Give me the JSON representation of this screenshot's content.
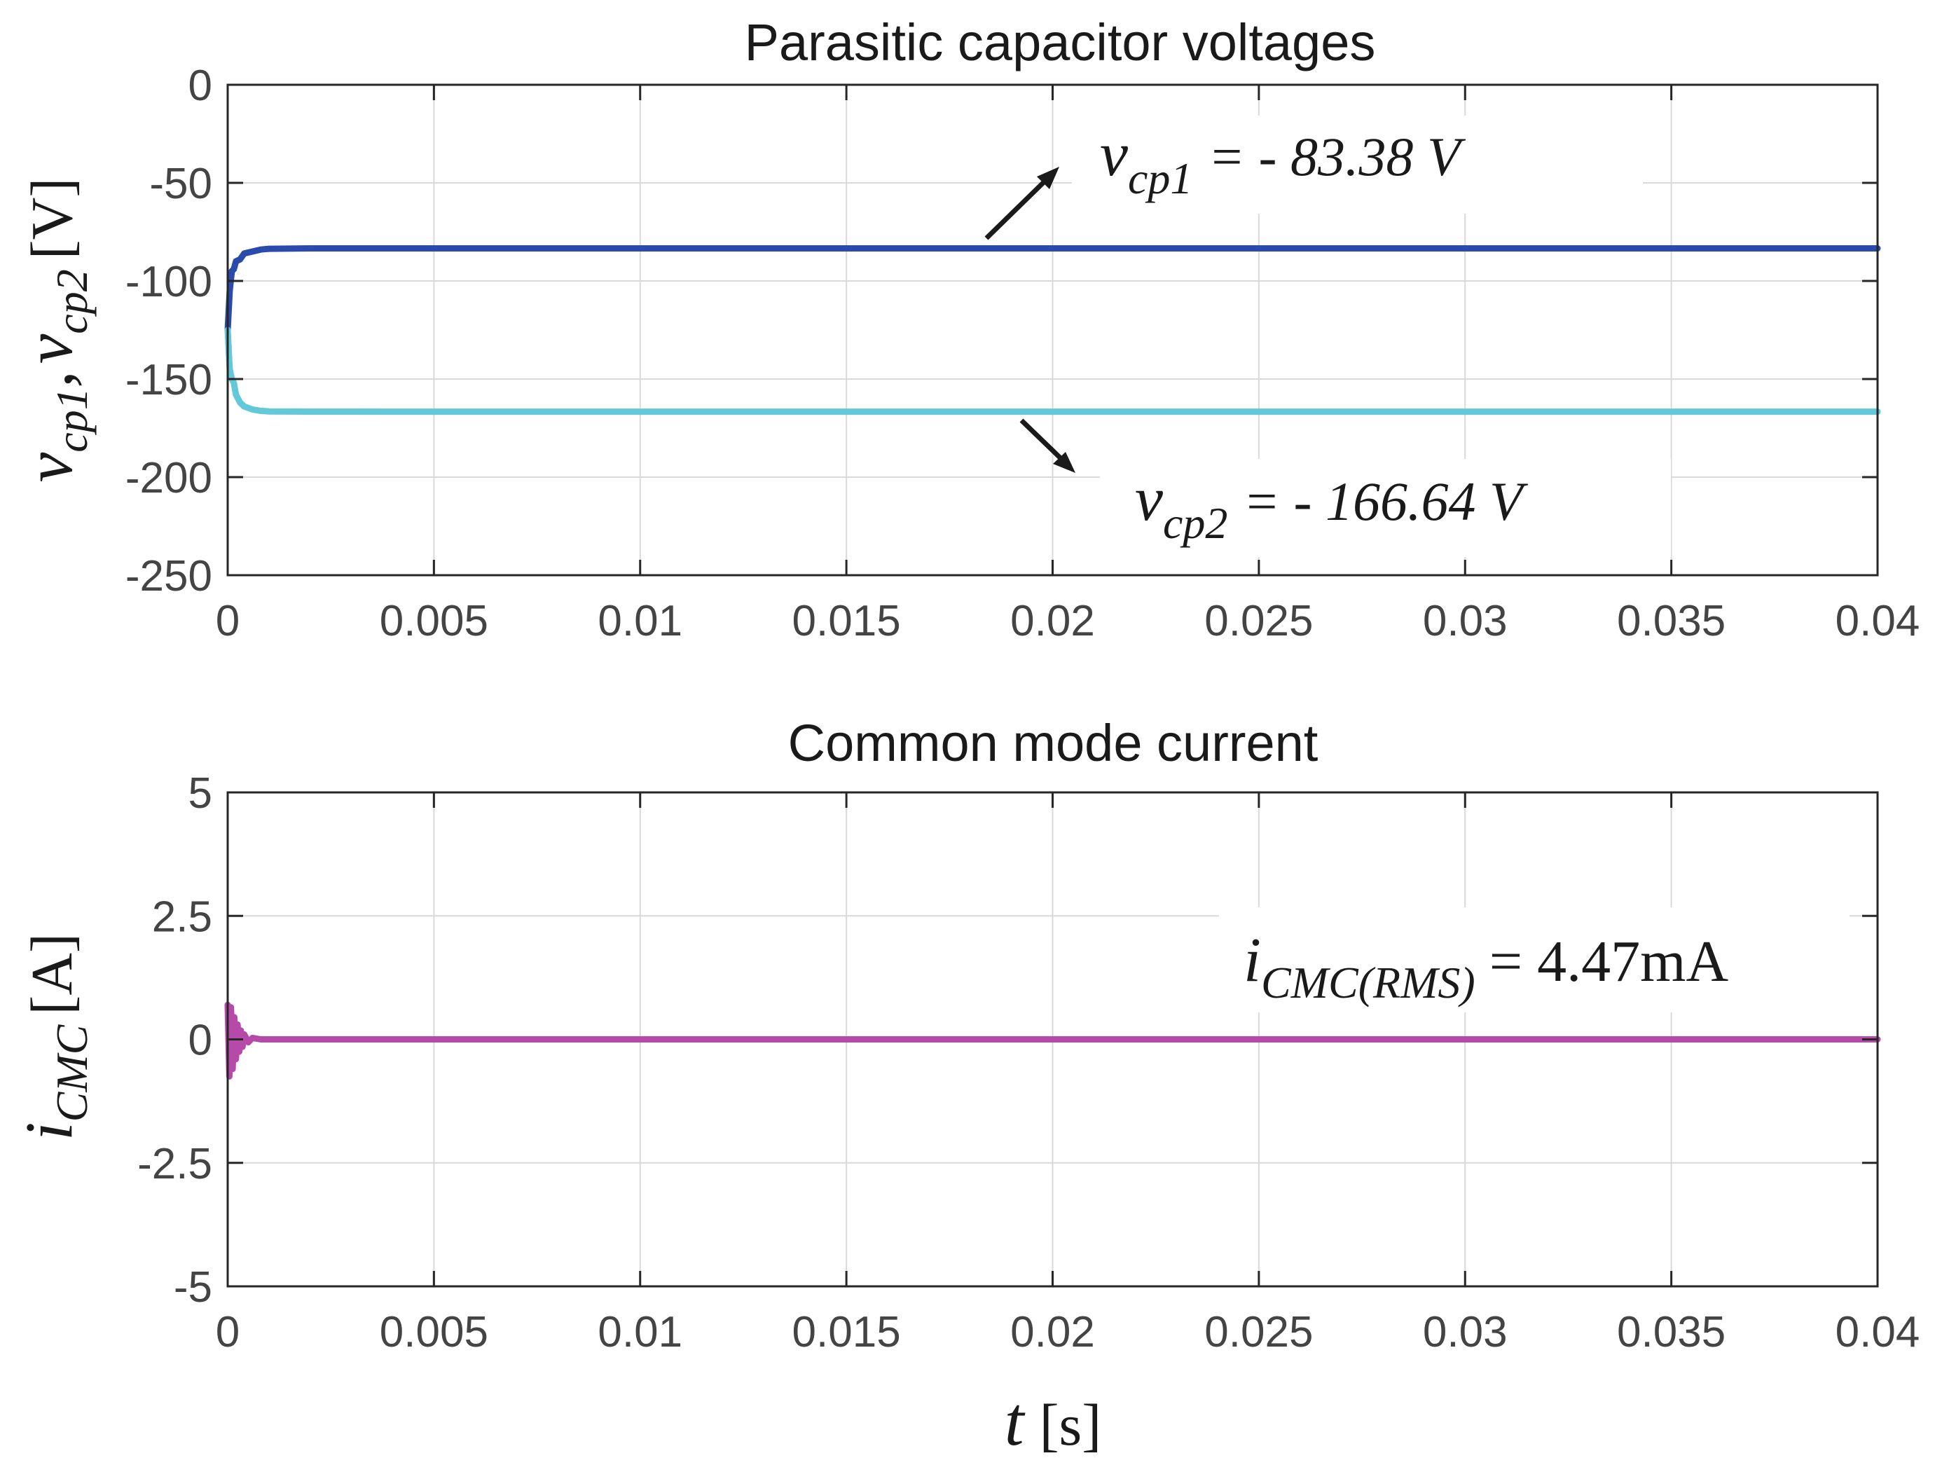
{
  "chart_data": [
    {
      "type": "line",
      "title": "Parasitic capacitor voltages",
      "xlabel": "",
      "ylabel": {
        "var": "v",
        "sub1": "cp1",
        "sep": ",",
        "sub2": "cp2",
        "unit": "[V]"
      },
      "xlim": [
        0,
        0.04
      ],
      "ylim": [
        -250,
        0
      ],
      "xticks": [
        0,
        0.005,
        0.01,
        0.015,
        0.02,
        0.025,
        0.03,
        0.035,
        0.04
      ],
      "xtick_labels": [
        "0",
        "0.005",
        "0.01",
        "0.015",
        "0.02",
        "0.025",
        "0.03",
        "0.035",
        "0.04"
      ],
      "yticks": [
        0,
        -50,
        -100,
        -150,
        -200,
        -250
      ],
      "ytick_labels": [
        "0",
        "-50",
        "-100",
        "-150",
        "-200",
        "-250"
      ],
      "grid": true,
      "series": [
        {
          "name": "v_cp1",
          "color": "#2a4bab",
          "x": [
            0,
            5e-05,
            0.0001,
            0.00015,
            0.0002,
            0.0003,
            0.0004,
            0.0006,
            0.0008,
            0.001,
            0.002,
            0.004,
            0.01,
            0.02,
            0.03,
            0.04
          ],
          "y": [
            -125,
            -105,
            -95,
            -94,
            -90,
            -89,
            -86,
            -85,
            -84,
            -83.6,
            -83.4,
            -83.38,
            -83.38,
            -83.38,
            -83.38,
            -83.38
          ]
        },
        {
          "name": "v_cp2",
          "color": "#63c8d8",
          "x": [
            0,
            5e-05,
            0.0001,
            0.00015,
            0.0002,
            0.0003,
            0.0004,
            0.0006,
            0.0008,
            0.001,
            0.002,
            0.004,
            0.01,
            0.02,
            0.03,
            0.04
          ],
          "y": [
            -125,
            -145,
            -150,
            -152,
            -158,
            -162,
            -164,
            -165.5,
            -166.2,
            -166.5,
            -166.6,
            -166.64,
            -166.64,
            -166.64,
            -166.64,
            -166.64
          ]
        }
      ],
      "annotations": [
        {
          "var": "v",
          "sub": "cp1",
          "eq": "= - 83.38 V",
          "target_series": "v_cp1"
        },
        {
          "var": "v",
          "sub": "cp2",
          "eq": "= - 166.64 V",
          "target_series": "v_cp2"
        }
      ]
    },
    {
      "type": "line",
      "title": "Common mode current",
      "xlabel": {
        "var": "t",
        "unit": "[s]"
      },
      "ylabel": {
        "var": "i",
        "sub": "CMC",
        "unit": "[A]"
      },
      "xlim": [
        0,
        0.04
      ],
      "ylim": [
        -5,
        5
      ],
      "xticks": [
        0,
        0.005,
        0.01,
        0.015,
        0.02,
        0.025,
        0.03,
        0.035,
        0.04
      ],
      "xtick_labels": [
        "0",
        "0.005",
        "0.01",
        "0.015",
        "0.02",
        "0.025",
        "0.03",
        "0.035",
        "0.04"
      ],
      "yticks": [
        5,
        2.5,
        0,
        -2.5,
        -5
      ],
      "ytick_labels": [
        "5",
        "2.5",
        "0",
        "-2.5",
        "-5"
      ],
      "grid": true,
      "series": [
        {
          "name": "i_CMC",
          "color": "#b54aa8",
          "x": [
            0,
            4e-05,
            8e-05,
            0.00012,
            0.00016,
            0.0002,
            0.00024,
            0.00028,
            0.00032,
            0.00036,
            0.0004,
            0.0005,
            0.0006,
            0.0008,
            0.04
          ],
          "y": [
            0.7,
            -0.75,
            0.65,
            -0.6,
            0.45,
            -0.4,
            0.3,
            -0.25,
            0.18,
            -0.15,
            0.1,
            -0.06,
            0.03,
            0,
            0
          ]
        }
      ],
      "annotations": [
        {
          "var": "i",
          "sub": "CMC(RMS)",
          "eq": "= 4.47mA"
        }
      ]
    }
  ]
}
